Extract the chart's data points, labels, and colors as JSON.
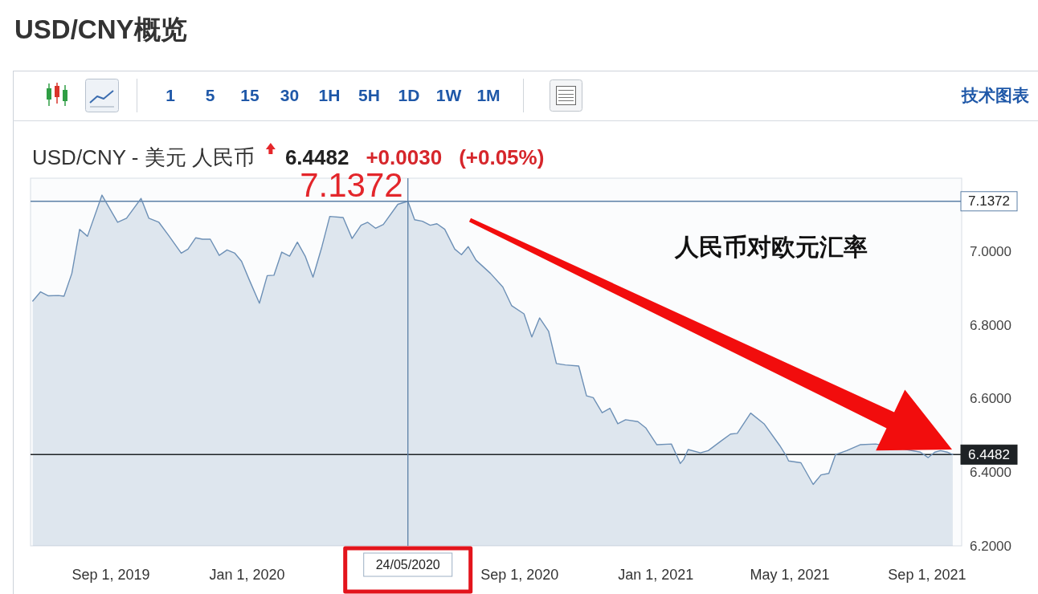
{
  "chart_data": [
    {
      "type": "other",
      "title": "USD/CNY概览",
      "annotations": [
        "1",
        "5",
        "15",
        "30",
        "1H",
        "5H",
        "1D",
        "1W",
        "1M",
        "技术图表"
      ]
    },
    {
      "type": "area",
      "subtitle": "USD/CNY - 美元 人民币",
      "x": [
        "2019-06-23",
        "2019-06-30",
        "2019-07-07",
        "2019-07-16",
        "2019-07-21",
        "2019-07-28",
        "2019-08-04",
        "2019-08-11",
        "2019-08-24",
        "2019-09-07",
        "2019-09-15",
        "2019-09-28",
        "2019-10-05",
        "2019-10-14",
        "2019-10-23",
        "2019-11-03",
        "2019-11-09",
        "2019-11-16",
        "2019-11-22",
        "2019-11-29",
        "2019-12-07",
        "2019-12-14",
        "2019-12-21",
        "2019-12-27",
        "2020-01-03",
        "2020-01-12",
        "2020-01-19",
        "2020-01-25",
        "2020-02-01",
        "2020-02-08",
        "2020-02-15",
        "2020-02-22",
        "2020-02-29",
        "2020-03-08",
        "2020-03-15",
        "2020-03-27",
        "2020-04-04",
        "2020-04-12",
        "2020-04-18",
        "2020-04-25",
        "2020-05-02",
        "2020-05-15",
        "2020-05-24",
        "2020-05-30",
        "2020-06-06",
        "2020-06-13",
        "2020-06-19",
        "2020-06-26",
        "2020-07-05",
        "2020-07-11",
        "2020-07-17",
        "2020-07-24",
        "2020-08-06",
        "2020-08-17",
        "2020-08-25",
        "2020-09-05",
        "2020-09-12",
        "2020-09-19",
        "2020-09-27",
        "2020-10-04",
        "2020-10-12",
        "2020-10-24",
        "2020-10-31",
        "2020-11-06",
        "2020-11-14",
        "2020-11-21",
        "2020-11-28",
        "2020-12-05",
        "2020-12-16",
        "2020-12-23",
        "2021-01-02",
        "2021-01-15",
        "2021-01-20",
        "2021-01-23",
        "2021-01-26",
        "2021-01-30",
        "2021-02-10",
        "2021-02-17",
        "2021-02-28",
        "2021-03-09",
        "2021-03-15",
        "2021-03-27",
        "2021-04-08",
        "2021-04-22",
        "2021-04-28",
        "2021-04-30",
        "2021-05-11",
        "2021-05-22",
        "2021-05-29",
        "2021-06-05",
        "2021-06-11",
        "2021-06-21",
        "2021-07-03",
        "2021-07-17",
        "2021-08-26",
        "2021-09-02",
        "2021-09-08",
        "2021-09-13",
        "2021-09-19",
        "2021-09-24"
      ],
      "series": [
        {
          "color": "#6d90b6",
          "values": [
            6.866,
            6.891,
            6.88,
            6.881,
            6.879,
            6.941,
            7.061,
            7.042,
            7.154,
            7.08,
            7.091,
            7.145,
            7.091,
            7.08,
            7.043,
            6.996,
            7.007,
            7.038,
            7.034,
            7.034,
            6.99,
            7.005,
            6.996,
            6.974,
            6.923,
            6.86,
            6.935,
            6.936,
            6.999,
            6.988,
            7.026,
            6.988,
            6.931,
            7.014,
            7.096,
            7.093,
            7.036,
            7.072,
            7.08,
            7.064,
            7.074,
            7.129,
            7.1372,
            7.087,
            7.083,
            7.072,
            7.076,
            7.061,
            7.007,
            6.992,
            7.014,
            6.977,
            6.941,
            6.904,
            6.853,
            6.831,
            6.768,
            6.82,
            6.784,
            6.696,
            6.692,
            6.689,
            6.608,
            6.603,
            6.562,
            6.574,
            6.532,
            6.543,
            6.538,
            6.521,
            6.475,
            6.477,
            6.444,
            6.424,
            6.435,
            6.462,
            6.453,
            6.459,
            6.484,
            6.504,
            6.506,
            6.561,
            6.532,
            6.473,
            6.444,
            6.431,
            6.426,
            6.367,
            6.393,
            6.397,
            6.448,
            6.459,
            6.475,
            6.477,
            6.455,
            6.44,
            6.455,
            6.459,
            6.455,
            6.4482
          ]
        }
      ],
      "xlim": [
        "2019-06-21",
        "2021-10-02"
      ],
      "ylim": [
        6.2,
        7.2
      ],
      "xticks": [
        {
          "value": "2019-09-01",
          "label": "Sep 1, 2019"
        },
        {
          "value": "2020-01-01",
          "label": "Jan 1, 2020"
        },
        {
          "value": "2020-09-01",
          "label": "Sep 1, 2020"
        },
        {
          "value": "2021-01-01",
          "label": "Jan 1, 2021"
        },
        {
          "value": "2021-05-01",
          "label": "May 1, 2021"
        },
        {
          "value": "2021-09-01",
          "label": "Sep 1, 2021"
        }
      ],
      "yticks": [
        {
          "value": 6.2,
          "label": "6.2000"
        },
        {
          "value": 6.4,
          "label": "6.4000"
        },
        {
          "value": 6.6,
          "label": "6.6000"
        },
        {
          "value": 6.8,
          "label": "6.8000"
        },
        {
          "value": 7.0,
          "label": "7.0000"
        }
      ],
      "ref_lines": [
        {
          "axis": "y",
          "value": 7.1372,
          "label": "7.1372",
          "color": "#5b7fa6"
        },
        {
          "axis": "y",
          "value": 6.4482,
          "label": "6.4482",
          "color": "#1e2225"
        },
        {
          "axis": "x",
          "value": "2020-05-24",
          "label": "24/05/2020",
          "color": "#5b7fa6"
        }
      ],
      "annotations": [
        "6.4482",
        "+0.0030",
        "(+0.05%)",
        "人民币对欧元汇率",
        {
          "text": "7.1372",
          "x": "2020-05-24",
          "y": 7.1372
        }
      ]
    }
  ]
}
